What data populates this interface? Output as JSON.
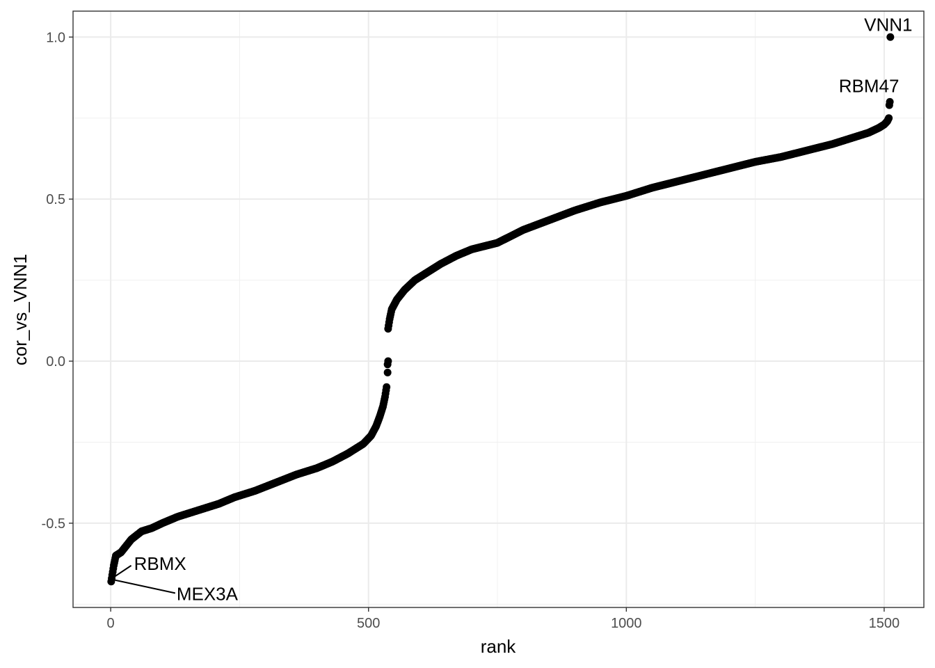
{
  "chart_data": {
    "type": "scatter",
    "title": "",
    "xlabel": "rank",
    "ylabel": "cor_vs_VNN1",
    "xlim": [
      -73,
      1577
    ],
    "ylim": [
      -0.76,
      1.08
    ],
    "x_ticks": [
      0,
      500,
      1000,
      1500
    ],
    "x_tick_labels": [
      "0",
      "500",
      "1000",
      "1500"
    ],
    "y_ticks": [
      -0.5,
      0.0,
      0.5,
      1.0
    ],
    "y_tick_labels": [
      "-0.5",
      "0.0",
      "0.5",
      "1.0"
    ],
    "grid": true,
    "legend": "none",
    "point_color": "#000000",
    "curve": [
      {
        "x": 1,
        "y": -0.68
      },
      {
        "x": 3,
        "y": -0.66
      },
      {
        "x": 6,
        "y": -0.63
      },
      {
        "x": 10,
        "y": -0.6
      },
      {
        "x": 20,
        "y": -0.59
      },
      {
        "x": 30,
        "y": -0.57
      },
      {
        "x": 40,
        "y": -0.55
      },
      {
        "x": 60,
        "y": -0.525
      },
      {
        "x": 80,
        "y": -0.515
      },
      {
        "x": 100,
        "y": -0.5
      },
      {
        "x": 130,
        "y": -0.48
      },
      {
        "x": 170,
        "y": -0.46
      },
      {
        "x": 210,
        "y": -0.44
      },
      {
        "x": 240,
        "y": -0.42
      },
      {
        "x": 280,
        "y": -0.4
      },
      {
        "x": 320,
        "y": -0.375
      },
      {
        "x": 360,
        "y": -0.35
      },
      {
        "x": 400,
        "y": -0.33
      },
      {
        "x": 430,
        "y": -0.31
      },
      {
        "x": 460,
        "y": -0.285
      },
      {
        "x": 490,
        "y": -0.255
      },
      {
        "x": 505,
        "y": -0.23
      },
      {
        "x": 515,
        "y": -0.2
      },
      {
        "x": 522,
        "y": -0.17
      },
      {
        "x": 528,
        "y": -0.14
      },
      {
        "x": 532,
        "y": -0.11
      },
      {
        "x": 535,
        "y": -0.08
      },
      {
        "x": 538,
        "y": 0.1
      },
      {
        "x": 541,
        "y": 0.13
      },
      {
        "x": 545,
        "y": 0.16
      },
      {
        "x": 555,
        "y": 0.19
      },
      {
        "x": 570,
        "y": 0.22
      },
      {
        "x": 590,
        "y": 0.25
      },
      {
        "x": 615,
        "y": 0.275
      },
      {
        "x": 640,
        "y": 0.3
      },
      {
        "x": 670,
        "y": 0.325
      },
      {
        "x": 700,
        "y": 0.345
      },
      {
        "x": 750,
        "y": 0.365
      },
      {
        "x": 800,
        "y": 0.405
      },
      {
        "x": 850,
        "y": 0.435
      },
      {
        "x": 900,
        "y": 0.465
      },
      {
        "x": 950,
        "y": 0.49
      },
      {
        "x": 1000,
        "y": 0.51
      },
      {
        "x": 1050,
        "y": 0.535
      },
      {
        "x": 1100,
        "y": 0.555
      },
      {
        "x": 1150,
        "y": 0.575
      },
      {
        "x": 1200,
        "y": 0.595
      },
      {
        "x": 1250,
        "y": 0.615
      },
      {
        "x": 1300,
        "y": 0.63
      },
      {
        "x": 1350,
        "y": 0.65
      },
      {
        "x": 1400,
        "y": 0.67
      },
      {
        "x": 1440,
        "y": 0.69
      },
      {
        "x": 1470,
        "y": 0.705
      },
      {
        "x": 1490,
        "y": 0.72
      },
      {
        "x": 1500,
        "y": 0.73
      },
      {
        "x": 1506,
        "y": 0.74
      },
      {
        "x": 1509,
        "y": 0.75
      }
    ],
    "isolated_points": [
      {
        "x": 537,
        "y": -0.035
      },
      {
        "x": 537,
        "y": -0.01
      },
      {
        "x": 538,
        "y": 0.0
      },
      {
        "x": 1510,
        "y": 0.79
      },
      {
        "x": 1511,
        "y": 0.8
      },
      {
        "x": 1512,
        "y": 1.0
      }
    ],
    "annotations": [
      {
        "label": "VNN1",
        "x": 1512,
        "y": 1.0
      },
      {
        "label": "RBM47",
        "x": 1511,
        "y": 0.8
      },
      {
        "label": "RBMX",
        "x": 2,
        "y": -0.665
      },
      {
        "label": "MEX3A",
        "x": 1,
        "y": -0.675
      }
    ]
  }
}
